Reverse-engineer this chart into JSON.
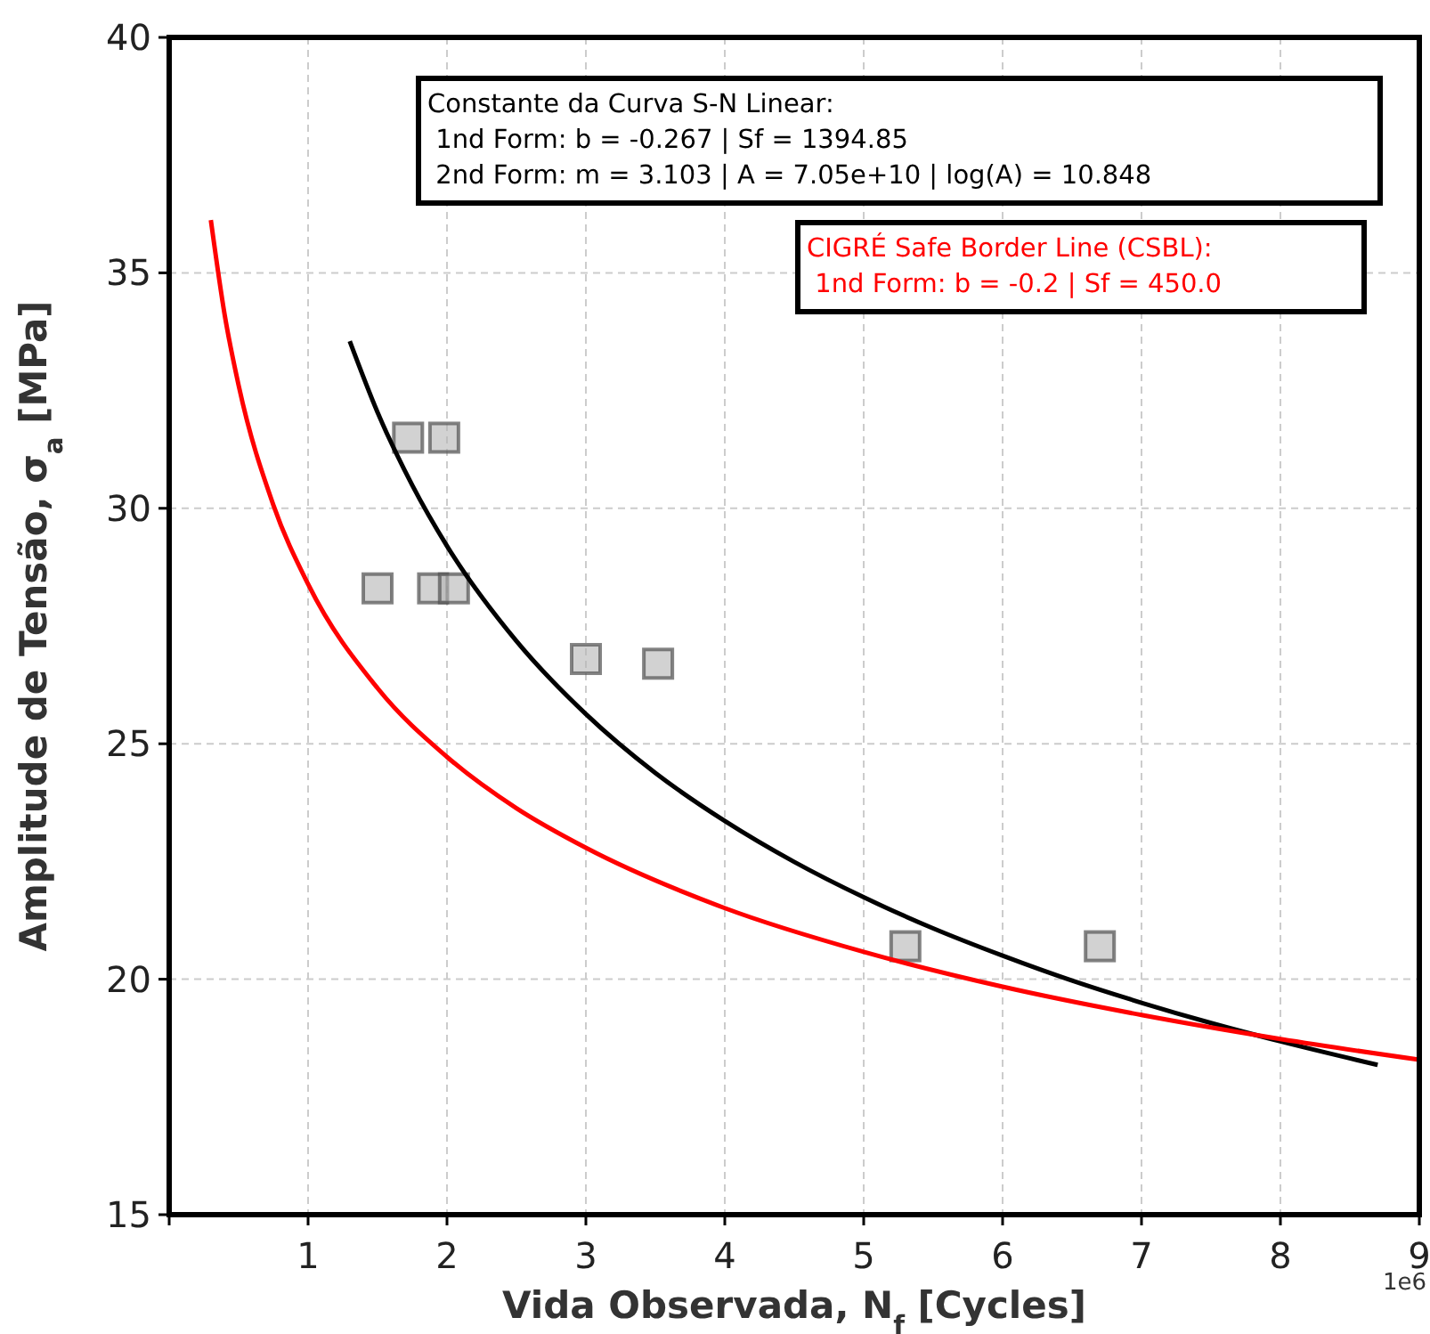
{
  "chart_data": {
    "type": "line",
    "xlabel": "Vida Observada, N$_{f}$ [Cycles]",
    "ylabel": "Amplitude de Tensão, σ$_{a}$ [MPa]",
    "xlim": [
      0,
      9
    ],
    "xticks": [
      {
        "value": 0,
        "label": null
      },
      1,
      2,
      3,
      4,
      5,
      6,
      7,
      8,
      9
    ],
    "ylim": [
      15,
      40
    ],
    "yticks": [
      15,
      20,
      25,
      30,
      35,
      40
    ],
    "grid": true,
    "series": [
      {
        "type": "scatter",
        "color": "#b4b4b4",
        "marker": "square",
        "x": [
          1.72,
          1.98,
          1.5,
          1.9,
          2.05,
          3.0,
          3.52,
          5.3,
          6.7
        ],
        "values": [
          31.5,
          31.5,
          28.3,
          28.3,
          28.3,
          26.8,
          26.7,
          20.7,
          20.7
        ]
      },
      {
        "color": "#000000",
        "x": [
          1.3,
          1.5,
          1.75,
          2,
          2.5,
          3,
          3.5,
          4,
          4.5,
          5,
          5.5,
          6,
          6.5,
          7,
          7.5,
          8,
          8.7
        ],
        "values": [
          33.55,
          32.04,
          30.49,
          29.2,
          27.18,
          25.63,
          24.38,
          23.36,
          22.49,
          21.74,
          21.08,
          20.5,
          19.97,
          19.5,
          19.07,
          18.68,
          18.18
        ]
      },
      {
        "color": "#ff0000",
        "x": [
          0.3,
          0.4,
          0.5,
          0.75,
          1,
          1.5,
          2,
          2.5,
          3,
          4,
          5,
          6,
          7,
          8,
          9
        ],
        "values": [
          36.12,
          34.1,
          32.61,
          30.07,
          28.39,
          26.18,
          24.72,
          23.63,
          22.79,
          21.51,
          20.58,
          19.84,
          19.24,
          18.73,
          18.29
        ]
      }
    ],
    "annotations": [
      "Constante da Curva S-N Linear:\n 1nd Form: b = -0.267 | Sf = 1394.85\n 2nd Form: m = 3.103 | A = 7.05e+10 | log(A) = 10.848",
      "CIGRÉ Safe Border Line (CSBL):\n 1nd Form: b = -0.2 | Sf = 450.0",
      "1e6"
    ]
  }
}
